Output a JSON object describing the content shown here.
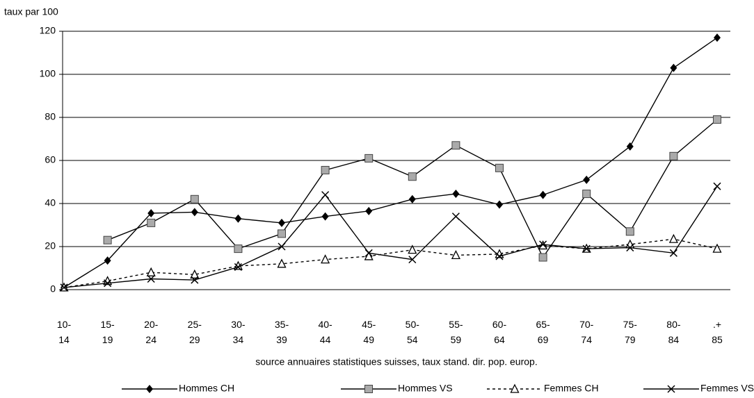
{
  "chart_data": {
    "type": "line",
    "y_axis_label": "taux par 100",
    "x_axis_label": "source annuaires statistiques suisses, taux stand. dir. pop. europ.",
    "categories": [
      "10- 14",
      "15- 19",
      "20- 24",
      "25- 29",
      "30- 34",
      "35- 39",
      "40- 44",
      "45- 49",
      "50- 54",
      "55- 59",
      "60- 64",
      "65- 69",
      "70- 74",
      "75- 79",
      "80- 84",
      ".+ 85"
    ],
    "series": [
      {
        "name": "Hommes CH",
        "color": "#000000",
        "marker": "diamond",
        "line_style": "solid",
        "values": [
          1,
          13.5,
          35.5,
          36,
          33,
          31,
          34,
          36.5,
          42,
          44.5,
          39.5,
          44,
          51,
          66.5,
          103,
          117
        ]
      },
      {
        "name": "Hommes VS",
        "color": "#000000",
        "marker": "square",
        "line_style": "solid",
        "values": [
          null,
          23,
          31,
          42,
          19,
          26,
          55.5,
          61,
          52.5,
          67,
          56.5,
          15,
          44.5,
          27,
          62,
          79
        ]
      },
      {
        "name": "Femmes CH",
        "color": "#000000",
        "marker": "triangle",
        "line_style": "dashed",
        "values": [
          1,
          4,
          8,
          7,
          11,
          12,
          14,
          15.5,
          18.5,
          16,
          16.5,
          20.5,
          19,
          21,
          23.5,
          19
        ]
      },
      {
        "name": "Femmes VS",
        "color": "#000000",
        "marker": "x",
        "line_style": "solid",
        "values": [
          1,
          3,
          5,
          4.5,
          10.5,
          20,
          44,
          17,
          14,
          34,
          15.5,
          21,
          19,
          19.5,
          17,
          48
        ]
      }
    ],
    "ylim": [
      0,
      120
    ],
    "yticks": [
      0,
      20,
      40,
      60,
      80,
      100,
      120
    ],
    "grid": true,
    "legend": "bottom"
  }
}
